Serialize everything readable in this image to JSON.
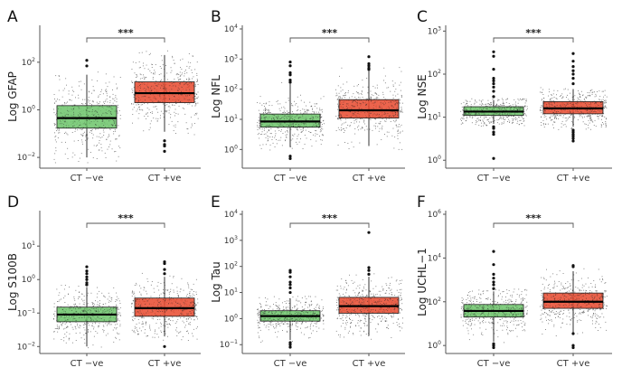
{
  "figure": {
    "colors": {
      "ct_neg": "#6cc46a",
      "ct_pos": "#e8492e",
      "jitter": "#444444",
      "median": "#000000"
    }
  },
  "chart_data": [
    {
      "panel": "A",
      "type": "box",
      "ylabel": "Log GFAP",
      "yscale": "log10",
      "ylim_exp": [
        -2.3,
        3.4
      ],
      "yticks_exp": [
        -2,
        0,
        2
      ],
      "categories": [
        "CT −ve",
        "CT +ve"
      ],
      "significance": "***",
      "series": [
        {
          "name": "CT −ve",
          "q1": 0.17,
          "median": 0.45,
          "q3": 1.5,
          "whisker_low": 0.01,
          "whisker_high": 30,
          "outliers": [
            70,
            120
          ]
        },
        {
          "name": "CT +ve",
          "q1": 2.0,
          "median": 5.0,
          "q3": 15,
          "whisker_low": 0.12,
          "whisker_high": 200,
          "outliers": [
            0.05,
            0.035,
            0.03,
            0.018
          ]
        }
      ]
    },
    {
      "panel": "B",
      "type": "box",
      "ylabel": "Log NFL",
      "yscale": "log10",
      "ylim_exp": [
        -0.5,
        4
      ],
      "yticks_exp": [
        0,
        1,
        2,
        3,
        4
      ],
      "categories": [
        "CT −ve",
        "CT +ve"
      ],
      "significance": "***",
      "series": [
        {
          "name": "CT −ve",
          "q1": 5.5,
          "median": 8.5,
          "q3": 15,
          "whisker_low": 1.2,
          "whisker_high": 150,
          "outliers": [
            0.5,
            0.6,
            170,
            200,
            300,
            350,
            600,
            800
          ]
        },
        {
          "name": "CT +ve",
          "q1": 11,
          "median": 20,
          "q3": 45,
          "whisker_low": 1.3,
          "whisker_high": 400,
          "outliers": [
            450,
            500,
            600,
            700,
            1200
          ]
        }
      ]
    },
    {
      "panel": "C",
      "type": "box",
      "ylabel": "Log NSE",
      "yscale": "log10",
      "ylim_exp": [
        -0.1,
        3.05
      ],
      "yticks_exp": [
        0,
        1,
        2,
        3
      ],
      "categories": [
        "CT −ve",
        "CT +ve"
      ],
      "significance": "***",
      "series": [
        {
          "name": "CT −ve",
          "q1": 11,
          "median": 13.5,
          "q3": 17.5,
          "whisker_low": 7,
          "whisker_high": 25,
          "outliers": [
            1.1,
            4,
            4.5,
            5.5,
            6,
            30,
            40,
            50,
            60,
            70,
            80,
            130,
            260,
            330
          ]
        },
        {
          "name": "CT +ve",
          "q1": 12,
          "median": 16,
          "q3": 23,
          "whisker_low": 6,
          "whisker_high": 45,
          "outliers": [
            2.8,
            3.2,
            3.6,
            4,
            4.5,
            5,
            60,
            80,
            100,
            120,
            150,
            200,
            300
          ]
        }
      ]
    },
    {
      "panel": "D",
      "type": "box",
      "ylabel": "Log S100B",
      "yscale": "log10",
      "ylim_exp": [
        -2.1,
        1.95
      ],
      "yticks_exp": [
        -2,
        -1,
        0,
        1
      ],
      "categories": [
        "CT −ve",
        "CT +ve"
      ],
      "significance": "***",
      "series": [
        {
          "name": "CT −ve",
          "q1": 0.055,
          "median": 0.09,
          "q3": 0.15,
          "whisker_low": 0.01,
          "whisker_high": 0.6,
          "outliers": [
            0.7,
            0.8,
            1.0,
            1.2,
            1.5,
            1.8,
            2.4
          ]
        },
        {
          "name": "CT +ve",
          "q1": 0.08,
          "median": 0.14,
          "q3": 0.28,
          "whisker_low": 0.02,
          "whisker_high": 1.2,
          "outliers": [
            0.01,
            1.5,
            2.0,
            3.0,
            3.4
          ]
        }
      ]
    },
    {
      "panel": "E",
      "type": "box",
      "ylabel": "Log Tau",
      "yscale": "log10",
      "ylim_exp": [
        -1.2,
        4
      ],
      "yticks_exp": [
        -1,
        0,
        1,
        2,
        3,
        4
      ],
      "categories": [
        "CT −ve",
        "CT +ve"
      ],
      "significance": "***",
      "series": [
        {
          "name": "CT −ve",
          "q1": 0.8,
          "median": 1.25,
          "q3": 2.0,
          "whisker_low": 0.15,
          "whisker_high": 6,
          "outliers": [
            0.08,
            0.1,
            0.12,
            10,
            15,
            20,
            25,
            40,
            60,
            70
          ]
        },
        {
          "name": "CT +ve",
          "q1": 1.6,
          "median": 3.0,
          "q3": 6.5,
          "whisker_low": 0.22,
          "whisker_high": 40,
          "outliers": [
            50,
            70,
            90,
            2000
          ]
        }
      ]
    },
    {
      "panel": "F",
      "type": "box",
      "ylabel": "Log UCHL−1",
      "yscale": "log10",
      "ylim_exp": [
        -0.2,
        6
      ],
      "yticks_exp": [
        0,
        2,
        4,
        6
      ],
      "categories": [
        "CT −ve",
        "CT +ve"
      ],
      "significance": "***",
      "series": [
        {
          "name": "CT −ve",
          "q1": 20,
          "median": 38,
          "q3": 75,
          "whisker_low": 1.5,
          "whisker_high": 300,
          "outliers": [
            0.8,
            1,
            1.2,
            400,
            600,
            800,
            1200,
            1800,
            5000,
            20000
          ]
        },
        {
          "name": "CT +ve",
          "q1": 50,
          "median": 100,
          "q3": 250,
          "whisker_low": 3,
          "whisker_high": 2500,
          "outliers": [
            0.8,
            1.0,
            3.5,
            4000,
            4500
          ]
        }
      ]
    }
  ]
}
